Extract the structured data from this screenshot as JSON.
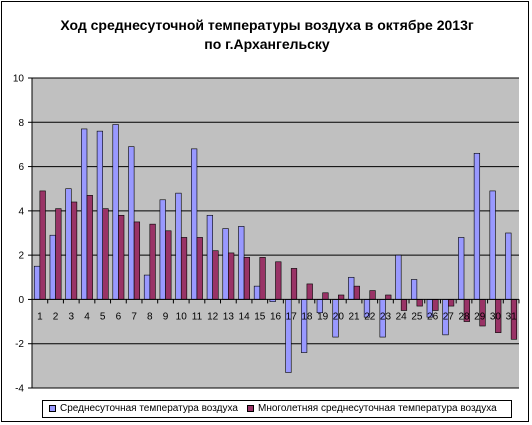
{
  "chart_data": {
    "type": "bar",
    "title_lines": [
      "Ход среднесуточной температуры воздуха в октябре 2013г",
      "по г.Архангельску"
    ],
    "xlabel": "",
    "ylabel": "",
    "ylim": [
      -4,
      10
    ],
    "yticks": [
      -4,
      -2,
      0,
      2,
      4,
      6,
      8,
      10
    ],
    "grid": true,
    "legend_position": "bottom",
    "categories": [
      "1",
      "2",
      "3",
      "4",
      "5",
      "6",
      "7",
      "8",
      "9",
      "10",
      "11",
      "12",
      "13",
      "14",
      "15",
      "16",
      "17",
      "18",
      "19",
      "20",
      "21",
      "22",
      "23",
      "24",
      "25",
      "26",
      "27",
      "28",
      "29",
      "30",
      "31"
    ],
    "series": [
      {
        "name": "Среднесуточная температура воздуха",
        "color": "#9999ff",
        "values": [
          1.5,
          2.9,
          5.0,
          7.7,
          7.6,
          7.9,
          6.9,
          1.1,
          4.5,
          4.8,
          6.8,
          3.8,
          3.2,
          3.3,
          0.6,
          -0.1,
          -3.3,
          -2.4,
          -0.6,
          -1.7,
          1.0,
          -0.8,
          -1.7,
          2.0,
          0.9,
          -0.8,
          -1.6,
          2.8,
          6.6,
          4.9,
          3.0
        ]
      },
      {
        "name": "Многолетняя среднесуточная температура воздуха",
        "color": "#993366",
        "values": [
          4.9,
          4.1,
          4.4,
          4.7,
          4.1,
          3.8,
          3.5,
          3.4,
          3.1,
          2.8,
          2.8,
          2.2,
          2.1,
          1.9,
          1.9,
          1.7,
          1.4,
          0.7,
          0.3,
          0.2,
          0.6,
          0.4,
          0.2,
          -0.5,
          -0.3,
          -0.5,
          -0.3,
          -1.0,
          -1.2,
          -1.5,
          -1.8
        ]
      }
    ]
  }
}
